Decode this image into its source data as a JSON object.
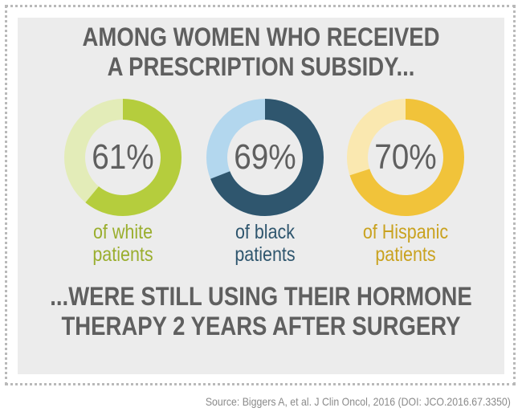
{
  "header": {
    "line1": "AMONG WOMEN WHO RECEIVED",
    "line2": "A PRESCRIPTION SUBSIDY..."
  },
  "footer": {
    "line1": "...WERE STILL USING THEIR HORMONE",
    "line2": "THERAPY 2 YEARS AFTER SURGERY"
  },
  "source": "Source: Biggers A, et al. J Clin Oncol, 2016 (DOI: JCO.2016.67.3350)",
  "chart_data": {
    "type": "pie",
    "categories": [
      "white patients",
      "black patients",
      "Hispanic patients"
    ],
    "values": [
      61,
      69,
      70
    ],
    "unit": "%",
    "items": [
      {
        "value": 61,
        "value_label": "61%",
        "caption_line1": "of white",
        "caption_line2": "patients",
        "color": "#b5cd3d",
        "track_color": "#e3ecb8",
        "caption_color": "#9aae2e"
      },
      {
        "value": 69,
        "value_label": "69%",
        "caption_line1": "of black",
        "caption_line2": "patients",
        "color": "#2f566e",
        "track_color": "#b3d7ee",
        "caption_color": "#2f566e"
      },
      {
        "value": 70,
        "value_label": "70%",
        "caption_line1": "of Hispanic",
        "caption_line2": "patients",
        "color": "#f1c33a",
        "track_color": "#fae8b0",
        "caption_color": "#c9a21f"
      }
    ]
  }
}
